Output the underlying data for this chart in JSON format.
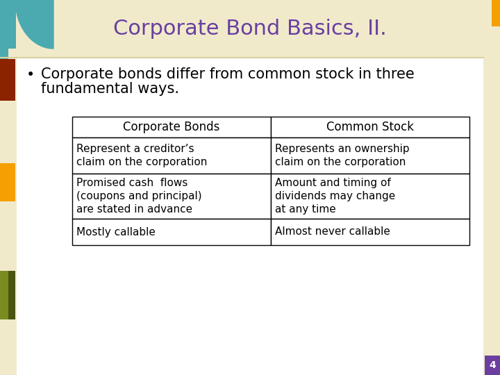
{
  "title": "Corporate Bond Basics, II.",
  "title_color": "#6B3FA0",
  "title_fontsize": 22,
  "bg_main": "#F0EACB",
  "bg_slide": "#FFFFFF",
  "bullet_text_line1": "Corporate bonds differ from common stock in three",
  "bullet_text_line2": "fundamental ways.",
  "bullet_fontsize": 15,
  "table_headers": [
    "Corporate Bonds",
    "Common Stock"
  ],
  "table_rows": [
    [
      "Represent a creditor’s\nclaim on the corporation",
      "Represents an ownership\nclaim on the corporation"
    ],
    [
      "Promised cash  flows\n(coupons and principal)\nare stated in advance",
      "Amount and timing of\ndividends may change\nat any time"
    ],
    [
      "Mostly callable",
      "Almost never callable"
    ]
  ],
  "table_fontsize": 11,
  "table_header_fontsize": 12,
  "teal_color": "#4BAAB0",
  "dark_red_color": "#8B2200",
  "orange_color": "#F5A000",
  "olive_color": "#7A8B20",
  "dark_olive_color": "#4A5510",
  "right_top_color": "#F5A000",
  "bottom_right_color": "#6B3FA0",
  "page_number": "4",
  "border_color": "#D8D0A0"
}
